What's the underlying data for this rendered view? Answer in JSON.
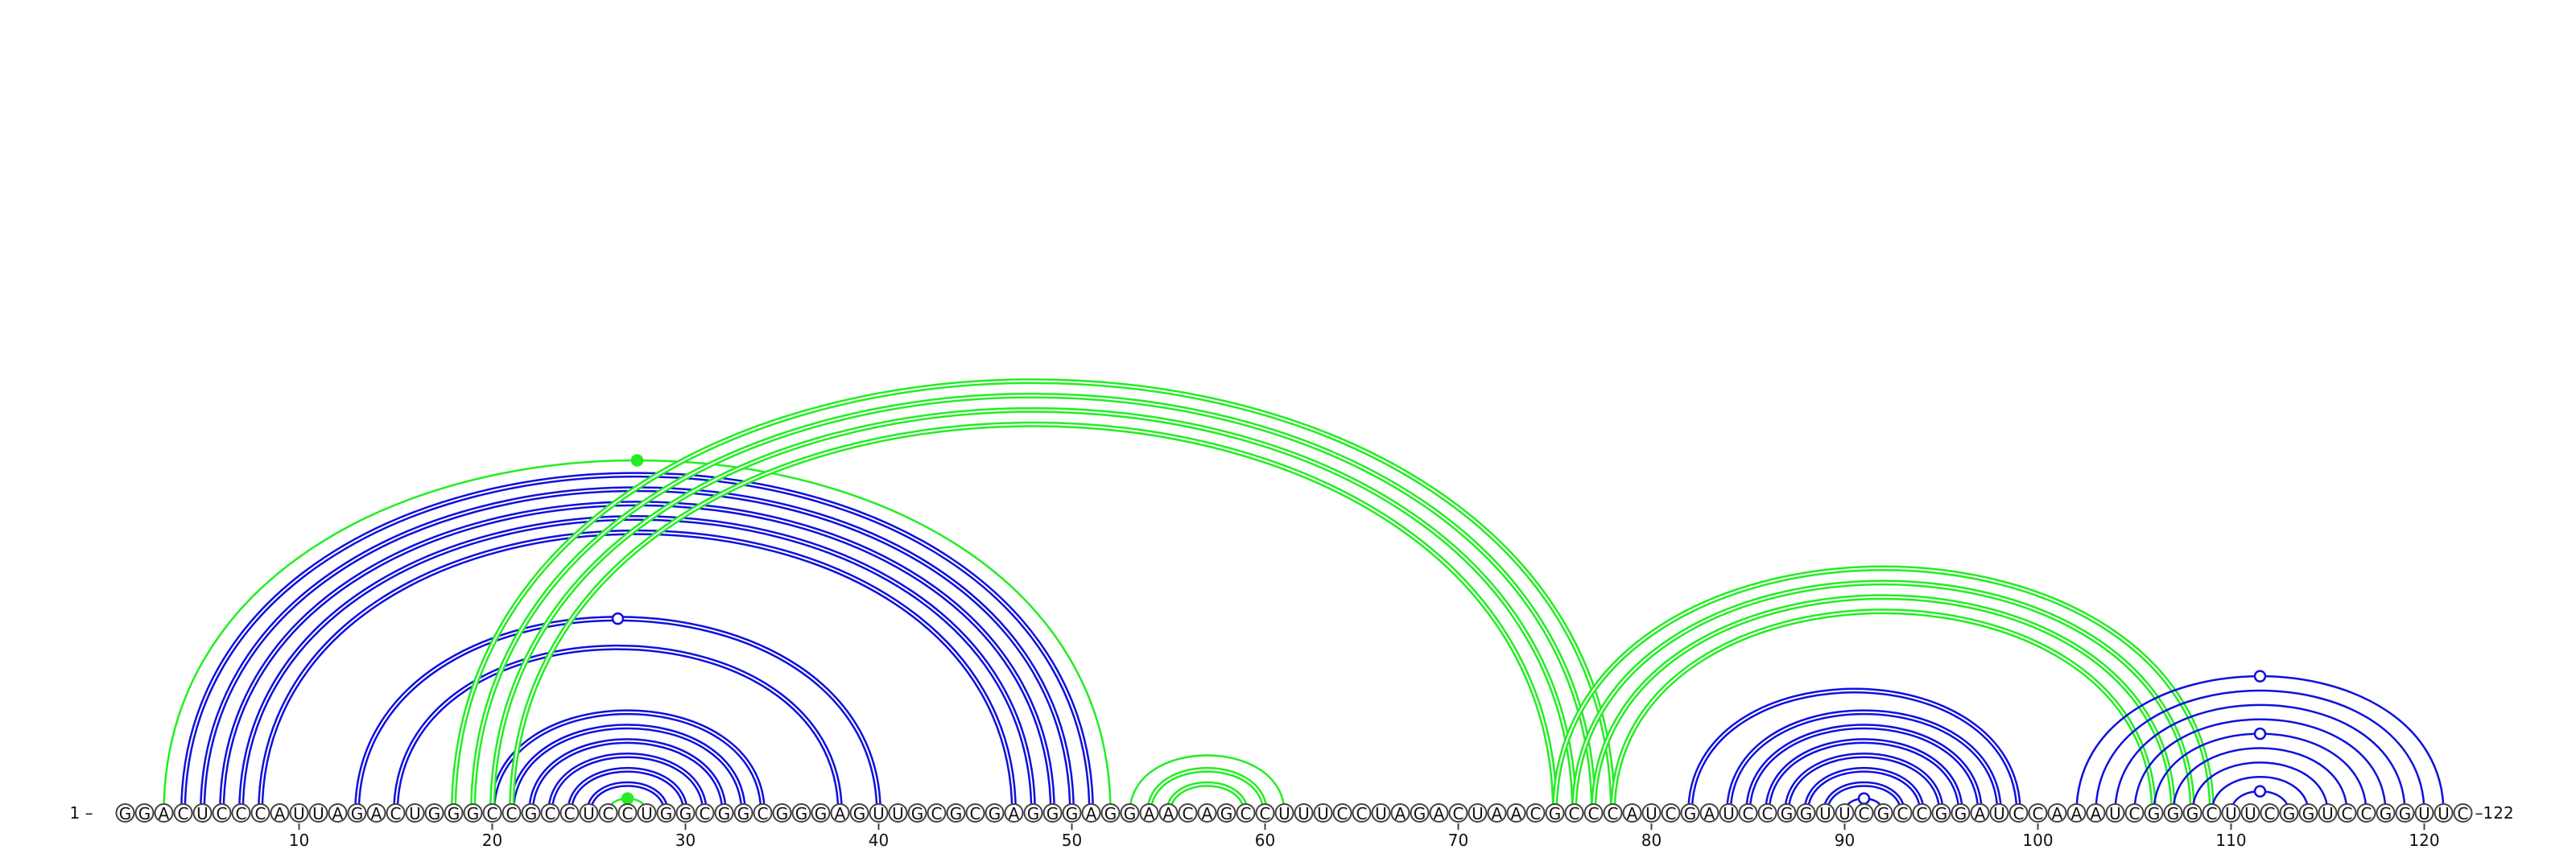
{
  "diagram": {
    "type": "rna-arc-diagram",
    "sequence": "GGACUCCCAUUAGACUGGGCCGCCUCCUGGCGGCGGGAGUUGCGCGAGGGAGGAACAGCCUUUCCUAGACUAACGCCCAUCGAUCCGGUUCGCCGGAUCCAAAUCGGGCUUCGGUCCGGUUC",
    "start_label": "1 –",
    "end_label": "–122",
    "ticks": [
      10,
      20,
      30,
      40,
      50,
      60,
      70,
      80,
      90,
      100,
      110,
      120
    ],
    "colors": {
      "blue": "#1010dd",
      "green": "#22ee22",
      "circle_stroke": "#444444"
    },
    "pairs": [
      {
        "i": 3,
        "j": 52,
        "color": "green",
        "double": false
      },
      {
        "i": 4,
        "j": 51,
        "color": "blue",
        "double": true
      },
      {
        "i": 5,
        "j": 50,
        "color": "blue",
        "double": true
      },
      {
        "i": 6,
        "j": 49,
        "color": "blue",
        "double": true
      },
      {
        "i": 7,
        "j": 48,
        "color": "blue",
        "double": true
      },
      {
        "i": 8,
        "j": 47,
        "color": "blue",
        "double": true
      },
      {
        "i": 13,
        "j": 40,
        "color": "blue",
        "double": true
      },
      {
        "i": 15,
        "j": 38,
        "color": "blue",
        "double": true
      },
      {
        "i": 20,
        "j": 34,
        "color": "blue",
        "double": true
      },
      {
        "i": 21,
        "j": 33,
        "color": "blue",
        "double": true
      },
      {
        "i": 22,
        "j": 32,
        "color": "blue",
        "double": true
      },
      {
        "i": 23,
        "j": 31,
        "color": "blue",
        "double": true
      },
      {
        "i": 24,
        "j": 30,
        "color": "blue",
        "double": true
      },
      {
        "i": 25,
        "j": 29,
        "color": "blue",
        "double": true
      },
      {
        "i": 26,
        "j": 28,
        "color": "green",
        "double": false
      },
      {
        "i": 18,
        "j": 78,
        "color": "green",
        "double": true
      },
      {
        "i": 19,
        "j": 77,
        "color": "green",
        "double": true
      },
      {
        "i": 20,
        "j": 76,
        "color": "green",
        "double": true
      },
      {
        "i": 21,
        "j": 75,
        "color": "green",
        "double": true
      },
      {
        "i": 53,
        "j": 61,
        "color": "green",
        "double": false
      },
      {
        "i": 54,
        "j": 60,
        "color": "green",
        "double": true
      },
      {
        "i": 55,
        "j": 59,
        "color": "green",
        "double": true
      },
      {
        "i": 75,
        "j": 109,
        "color": "green",
        "double": true
      },
      {
        "i": 76,
        "j": 108,
        "color": "green",
        "double": true
      },
      {
        "i": 77,
        "j": 107,
        "color": "green",
        "double": true
      },
      {
        "i": 78,
        "j": 106,
        "color": "green",
        "double": true
      },
      {
        "i": 82,
        "j": 99,
        "color": "blue",
        "double": true
      },
      {
        "i": 84,
        "j": 98,
        "color": "blue",
        "double": true
      },
      {
        "i": 85,
        "j": 97,
        "color": "blue",
        "double": true
      },
      {
        "i": 86,
        "j": 96,
        "color": "blue",
        "double": true
      },
      {
        "i": 87,
        "j": 95,
        "color": "blue",
        "double": true
      },
      {
        "i": 88,
        "j": 94,
        "color": "blue",
        "double": true
      },
      {
        "i": 89,
        "j": 93,
        "color": "blue",
        "double": true
      },
      {
        "i": 90,
        "j": 92,
        "color": "blue",
        "double": false
      },
      {
        "i": 102,
        "j": 121,
        "color": "blue",
        "double": false
      },
      {
        "i": 103,
        "j": 120,
        "color": "blue",
        "double": false
      },
      {
        "i": 104,
        "j": 119,
        "color": "blue",
        "double": false
      },
      {
        "i": 105,
        "j": 118,
        "color": "blue",
        "double": false
      },
      {
        "i": 106,
        "j": 117,
        "color": "blue",
        "double": false
      },
      {
        "i": 107,
        "j": 116,
        "color": "blue",
        "double": false
      },
      {
        "i": 108,
        "j": 115,
        "color": "blue",
        "double": false
      },
      {
        "i": 109,
        "j": 114,
        "color": "blue",
        "double": false
      },
      {
        "i": 110,
        "j": 113,
        "color": "blue",
        "double": false
      }
    ],
    "markers": [
      {
        "i": 3,
        "j": 52,
        "style": "filled",
        "color": "green"
      },
      {
        "i": 26,
        "j": 28,
        "style": "filled",
        "color": "green"
      },
      {
        "i": 13,
        "j": 40,
        "style": "open",
        "color": "blue"
      },
      {
        "i": 90,
        "j": 92,
        "style": "open",
        "color": "blue"
      },
      {
        "i": 102,
        "j": 121,
        "style": "open",
        "color": "blue"
      },
      {
        "i": 106,
        "j": 117,
        "style": "open",
        "color": "blue"
      },
      {
        "i": 110,
        "j": 113,
        "style": "open",
        "color": "blue"
      }
    ]
  }
}
